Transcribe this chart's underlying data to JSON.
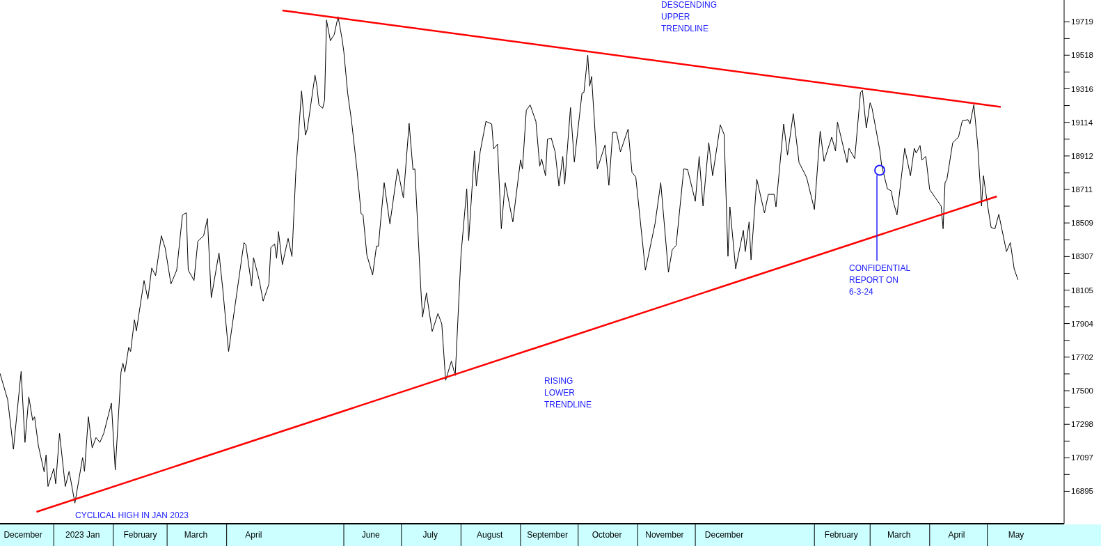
{
  "chart_data": {
    "type": "line",
    "xlim": [
      "2022-12-04",
      "2024-06-10"
    ],
    "ylim": [
      16700,
      19850
    ],
    "xticks": [
      {
        "value": "2022-12-16",
        "label": "December"
      },
      {
        "value": "2023-01-16",
        "label": "2023 Jan"
      },
      {
        "value": "2023-02-15",
        "label": "February"
      },
      {
        "value": "2023-03-16",
        "label": "March"
      },
      {
        "value": "2023-04-15",
        "label": "April"
      },
      {
        "value": "2023-06-15",
        "label": "June"
      },
      {
        "value": "2023-07-16",
        "label": "July"
      },
      {
        "value": "2023-08-16",
        "label": "August"
      },
      {
        "value": "2023-09-15",
        "label": "September"
      },
      {
        "value": "2023-10-16",
        "label": "October"
      },
      {
        "value": "2023-11-15",
        "label": "November"
      },
      {
        "value": "2023-12-16",
        "label": "December"
      },
      {
        "value": "2024-02-15",
        "label": "February"
      },
      {
        "value": "2024-03-16",
        "label": "March"
      },
      {
        "value": "2024-04-15",
        "label": "April"
      },
      {
        "value": "2024-05-16",
        "label": "May"
      }
    ],
    "yticks": [
      16895,
      {
        "value": 16996,
        "label": null
      },
      17097,
      {
        "value": 17197,
        "label": null
      },
      17298,
      {
        "value": 17399,
        "label": null
      },
      17500,
      {
        "value": 17601,
        "label": null
      },
      17702,
      {
        "value": 17803,
        "label": null
      },
      17904,
      {
        "value": 18004,
        "label": null
      },
      18105,
      {
        "value": 18206,
        "label": null
      },
      18307,
      {
        "value": 18408,
        "label": null
      },
      18509,
      {
        "value": 18610,
        "label": null
      },
      18711,
      {
        "value": 18811,
        "label": null
      },
      18912,
      {
        "value": 19013,
        "label": null
      },
      19114,
      {
        "value": 19215,
        "label": null
      },
      19316,
      {
        "value": 19417,
        "label": null
      },
      19518,
      {
        "value": 19618,
        "label": null
      },
      19719
    ],
    "grid": false,
    "series": [
      {
        "color": "#000000",
        "x": [
          "2022-12-04",
          "2022-12-08",
          "2022-12-11",
          "2022-12-15",
          "2022-12-17",
          "2022-12-19",
          "2022-12-21",
          "2022-12-22",
          "2022-12-24",
          "2022-12-27",
          "2022-12-28",
          "2022-12-29",
          "2023-01-01",
          "2023-01-02",
          "2023-01-04",
          "2023-01-07",
          "2023-01-09",
          "2023-01-12",
          "2023-01-16",
          "2023-01-17",
          "2023-01-19",
          "2023-01-21",
          "2023-01-23",
          "2023-01-25",
          "2023-01-27",
          "2023-01-31",
          "2023-02-02",
          "2023-02-05",
          "2023-02-06",
          "2023-02-07",
          "2023-02-09",
          "2023-02-10",
          "2023-02-12",
          "2023-02-13",
          "2023-02-17",
          "2023-02-19",
          "2023-02-21",
          "2023-02-23",
          "2023-02-26",
          "2023-02-28",
          "2023-03-03",
          "2023-03-06",
          "2023-03-09",
          "2023-03-11",
          "2023-03-12",
          "2023-03-15",
          "2023-03-17",
          "2023-03-20",
          "2023-03-22",
          "2023-03-24",
          "2023-03-28",
          "2023-03-30",
          "2023-04-02",
          "2023-04-10",
          "2023-04-11",
          "2023-04-14",
          "2023-04-15",
          "2023-04-18",
          "2023-04-20",
          "2023-04-23",
          "2023-04-24",
          "2023-04-26",
          "2023-04-27",
          "2023-04-28",
          "2023-04-30",
          "2023-05-03",
          "2023-05-05",
          "2023-05-07",
          "2023-05-10",
          "2023-05-12",
          "2023-05-13",
          "2023-05-17",
          "2023-05-18",
          "2023-05-19",
          "2023-05-21",
          "2023-05-22",
          "2023-05-23",
          "2023-05-25",
          "2023-05-27",
          "2023-05-29",
          "2023-05-31",
          "2023-06-01",
          "2023-06-03",
          "2023-06-05",
          "2023-06-08",
          "2023-06-10",
          "2023-06-11",
          "2023-06-13",
          "2023-06-16",
          "2023-06-18",
          "2023-06-19",
          "2023-06-22",
          "2023-06-25",
          "2023-06-29",
          "2023-07-02",
          "2023-07-05",
          "2023-07-07",
          "2023-07-08",
          "2023-07-11",
          "2023-07-12",
          "2023-07-14",
          "2023-07-17",
          "2023-07-20",
          "2023-07-22",
          "2023-07-24",
          "2023-07-27",
          "2023-07-29",
          "2023-08-01",
          "2023-08-04",
          "2023-08-05",
          "2023-08-08",
          "2023-08-09",
          "2023-08-11",
          "2023-08-14",
          "2023-08-17",
          "2023-08-18",
          "2023-08-20",
          "2023-08-22",
          "2023-08-24",
          "2023-08-28",
          "2023-09-01",
          "2023-09-02",
          "2023-09-04",
          "2023-09-06",
          "2023-09-09",
          "2023-09-11",
          "2023-09-12",
          "2023-09-14",
          "2023-09-15",
          "2023-09-17",
          "2023-09-19",
          "2023-09-21",
          "2023-09-23",
          "2023-09-24",
          "2023-09-27",
          "2023-09-29",
          "2023-10-03",
          "2023-10-04",
          "2023-10-06",
          "2023-10-07",
          "2023-10-08",
          "2023-10-11",
          "2023-10-15",
          "2023-10-17",
          "2023-10-19",
          "2023-10-21",
          "2023-10-23",
          "2023-10-27",
          "2023-10-29",
          "2023-10-31",
          "2023-11-05",
          "2023-11-10",
          "2023-11-13",
          "2023-11-17",
          "2023-11-19",
          "2023-11-21",
          "2023-11-25",
          "2023-11-27",
          "2023-12-01",
          "2023-12-03",
          "2023-12-05",
          "2023-12-08",
          "2023-12-10",
          "2023-12-14",
          "2023-12-16",
          "2023-12-18",
          "2023-12-19",
          "2023-12-22",
          "2023-12-26",
          "2023-12-27",
          "2023-12-29",
          "2023-12-30",
          "2024-01-02",
          "2024-01-06",
          "2024-01-08",
          "2024-01-11",
          "2024-01-12",
          "2024-01-16",
          "2024-01-18",
          "2024-01-21",
          "2024-01-24",
          "2024-01-27",
          "2024-01-28",
          "2024-02-01",
          "2024-02-04",
          "2024-02-06",
          "2024-02-10",
          "2024-02-12",
          "2024-02-13",
          "2024-02-18",
          "2024-02-19",
          "2024-02-22",
          "2024-02-25",
          "2024-02-26",
          "2024-02-28",
          "2024-03-01",
          "2024-03-02",
          "2024-03-06",
          "2024-03-07",
          "2024-03-10",
          "2024-03-12",
          "2024-03-13",
          "2024-03-15",
          "2024-03-19",
          "2024-03-22",
          "2024-03-24",
          "2024-03-25",
          "2024-03-27",
          "2024-03-28",
          "2024-03-30",
          "2024-04-01",
          "2024-04-04",
          "2024-04-07",
          "2024-04-08",
          "2024-04-09",
          "2024-04-10",
          "2024-04-13",
          "2024-04-16",
          "2024-04-18",
          "2024-04-21",
          "2024-04-22",
          "2024-04-24",
          "2024-04-26",
          "2024-04-28",
          "2024-04-29",
          "2024-05-01",
          "2024-05-03",
          "2024-05-05",
          "2024-05-07",
          "2024-05-11",
          "2024-05-13",
          "2024-05-15",
          "2024-05-17"
        ],
        "values": [
          17604,
          17446,
          17148,
          17616,
          17189,
          17463,
          17322,
          17343,
          17168,
          17011,
          17114,
          16924,
          17032,
          16940,
          17243,
          16924,
          17015,
          16824,
          17098,
          17015,
          17343,
          17156,
          17218,
          17189,
          17243,
          17425,
          17023,
          17612,
          17666,
          17612,
          17761,
          17736,
          17927,
          17860,
          18163,
          18051,
          18238,
          18192,
          18432,
          18358,
          18142,
          18225,
          18557,
          18570,
          18225,
          18163,
          18399,
          18432,
          18536,
          18059,
          18329,
          18109,
          17736,
          18391,
          18378,
          18130,
          18300,
          18163,
          18039,
          18142,
          18362,
          18383,
          18296,
          18457,
          18258,
          18416,
          18307,
          18814,
          19303,
          19037,
          19074,
          19398,
          19331,
          19220,
          19199,
          19249,
          19729,
          19605,
          19642,
          19750,
          19622,
          19539,
          19290,
          19124,
          18814,
          18565,
          18557,
          18316,
          18196,
          18370,
          18370,
          18751,
          18503,
          18834,
          18660,
          19108,
          18830,
          18834,
          18130,
          17943,
          18088,
          17856,
          17964,
          17902,
          17562,
          17678,
          17591,
          18316,
          18714,
          18403,
          18942,
          18731,
          18938,
          19120,
          19104,
          18954,
          18983,
          18474,
          18751,
          18515,
          18888,
          18834,
          19186,
          19219,
          19120,
          18851,
          18893,
          18793,
          19012,
          19020,
          18937,
          18731,
          18909,
          18743,
          19203,
          18876,
          19290,
          19294,
          19518,
          19332,
          19390,
          18834,
          18979,
          18735,
          19054,
          19054,
          18937,
          19074,
          18814,
          18785,
          18225,
          18503,
          18751,
          18213,
          18349,
          18374,
          18834,
          18830,
          18639,
          18909,
          18610,
          18992,
          18793,
          19099,
          19041,
          18308,
          18606,
          18233,
          18465,
          18337,
          18515,
          18287,
          18772,
          18569,
          18681,
          18681,
          18606,
          19104,
          18918,
          19166,
          18872,
          18805,
          18780,
          18590,
          19062,
          18880,
          19025,
          18942,
          19115,
          18872,
          18958,
          18896,
          19294,
          19307,
          19079,
          19232,
          19199,
          18949,
          18855,
          18715,
          18702,
          18639,
          18557,
          18958,
          18793,
          18958,
          18929,
          18975,
          18888,
          18909,
          18710,
          18660,
          18610,
          18474,
          18751,
          18772,
          18992,
          19025,
          19124,
          19130,
          19104,
          19220,
          18979,
          18610,
          18793,
          18627,
          18482,
          18474,
          18561,
          18337,
          18391,
          18233,
          18167
        ]
      },
      {
        "type": "line",
        "color": "#ff0000",
        "x": [
          "2023-04-30",
          "2024-05-08"
        ],
        "values": [
          19787,
          19207
        ]
      },
      {
        "type": "line",
        "color": "#ff0000",
        "x": [
          "2022-12-23",
          "2024-05-06"
        ],
        "values": [
          16771,
          18669
        ]
      }
    ],
    "annotations": [
      "DESCENDING\nUPPER\nTRENDLINE",
      "RISING\nLOWER\nTRENDLINE",
      "CYCLICAL HIGH IN JAN 2023",
      {
        "text": "CONFIDENTIAL\nREPORT ON\n6-3-24",
        "x": "2024-03-06",
        "y": 18826
      }
    ]
  }
}
